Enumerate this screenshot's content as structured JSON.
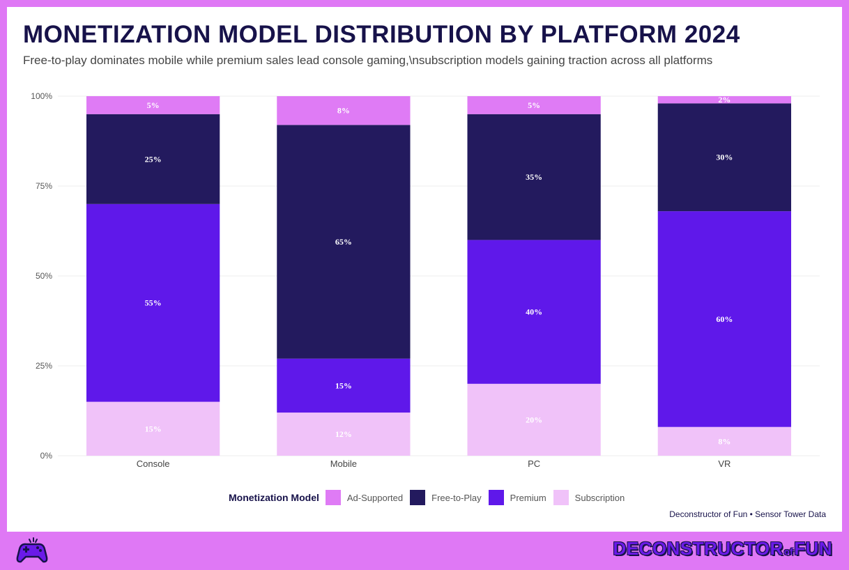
{
  "header": {
    "title": "MONETIZATION MODEL DISTRIBUTION BY PLATFORM 2024",
    "subtitle": "Free-to-play dominates mobile while premium sales lead console gaming,\\nsubscription models gaining traction across all platforms"
  },
  "colors": {
    "Ad-Supported": "#df7bf5",
    "Free-to-Play": "#231a5e",
    "Premium": "#5f18ea",
    "Subscription": "#f0c2f9",
    "frame": "#df78f5",
    "title": "#17124a"
  },
  "chart_data": {
    "type": "bar",
    "stacked": true,
    "categories": [
      "Console",
      "Mobile",
      "PC",
      "VR"
    ],
    "series": [
      {
        "name": "Subscription",
        "values": [
          15,
          12,
          20,
          8
        ]
      },
      {
        "name": "Premium",
        "values": [
          55,
          15,
          40,
          60
        ]
      },
      {
        "name": "Free-to-Play",
        "values": [
          25,
          65,
          35,
          30
        ]
      },
      {
        "name": "Ad-Supported",
        "values": [
          5,
          8,
          5,
          2
        ]
      }
    ],
    "y_ticks": [
      "0%",
      "25%",
      "50%",
      "75%",
      "100%"
    ],
    "ylim": [
      0,
      100
    ],
    "grid": true,
    "data_labels": true
  },
  "legend": {
    "title": "Monetization Model",
    "items": [
      "Ad-Supported",
      "Free-to-Play",
      "Premium",
      "Subscription"
    ]
  },
  "caption": "Deconstructor of Fun • Sensor Tower Data",
  "footer": {
    "brand_main": "DECONSTRUCTOR",
    "brand_of": "of",
    "brand_end": "FUN",
    "logo_icon": "gamepad-icon"
  }
}
